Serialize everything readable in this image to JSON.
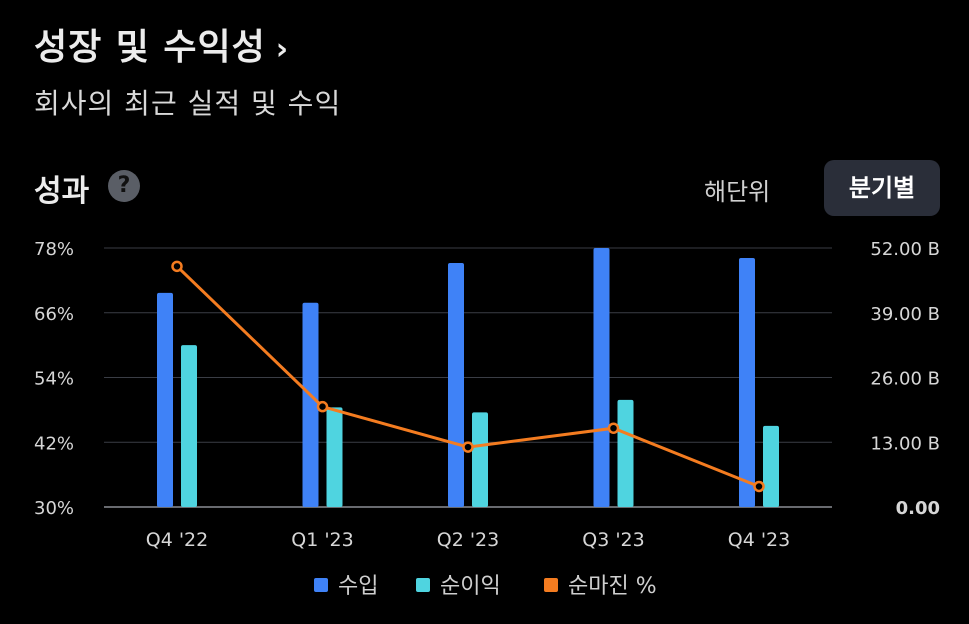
{
  "header": {
    "title": "성장 및 수익성",
    "chevron": "›",
    "subtitle": "회사의 최근 실적 및 수익"
  },
  "section": {
    "title": "성과",
    "help_glyph": "?"
  },
  "toggle": {
    "annual_label": "해단위",
    "quarterly_label": "분기별",
    "selected": "분기별"
  },
  "colors": {
    "revenue": "#3f82f7",
    "net_income": "#4fd4e0",
    "net_margin": "#f47c20",
    "grid": "#3a3d45",
    "background": "#000000"
  },
  "chart_data": {
    "type": "bar",
    "categories": [
      "Q4 '22",
      "Q1 '23",
      "Q2 '23",
      "Q3 '23",
      "Q4 '23"
    ],
    "series": [
      {
        "name": "수입",
        "kind": "bar",
        "axis": "right",
        "values": [
          43.0,
          41.0,
          49.0,
          52.0,
          50.0
        ]
      },
      {
        "name": "순이익",
        "kind": "bar",
        "axis": "right",
        "values": [
          32.5,
          20.0,
          19.0,
          21.5,
          16.3
        ]
      },
      {
        "name": "순마진 %",
        "kind": "line",
        "axis": "left",
        "values": [
          74.6,
          48.6,
          41.1,
          44.6,
          33.8
        ]
      }
    ],
    "left_axis": {
      "ticks": [
        "78%",
        "66%",
        "54%",
        "42%",
        "30%"
      ],
      "range": [
        30,
        78
      ]
    },
    "right_axis": {
      "ticks": [
        "52.00 B",
        "39.00 B",
        "26.00 B",
        "13.00 B",
        "0.00"
      ],
      "range": [
        0,
        52
      ]
    },
    "grid": true,
    "legend_position": "bottom-center"
  }
}
